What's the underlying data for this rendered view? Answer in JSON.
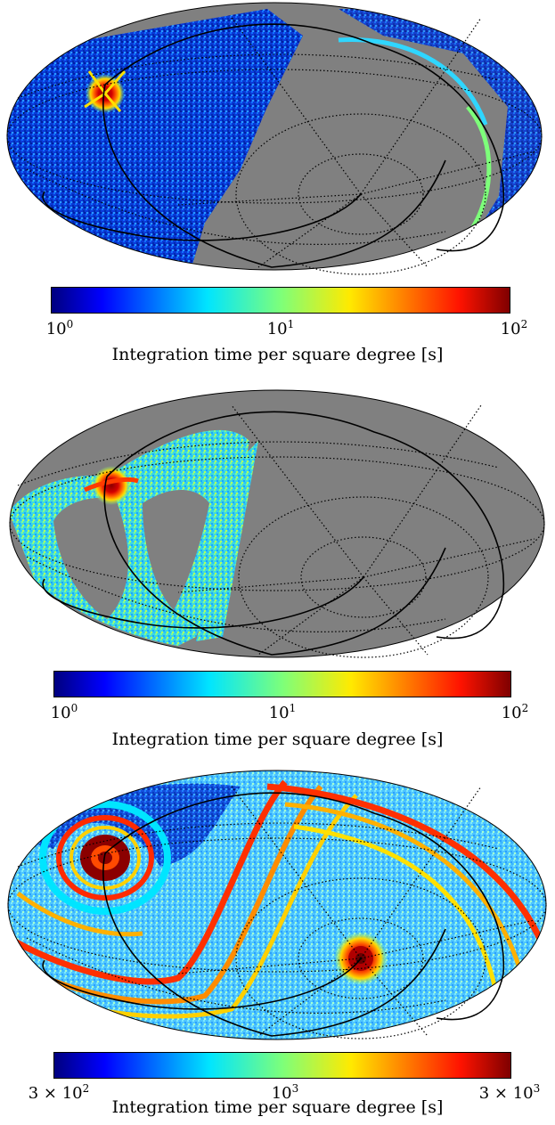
{
  "chart_data": [
    {
      "type": "heatmap",
      "projection": "mollweide",
      "colormap": "jet",
      "scale": "log",
      "colorbar_range": [
        1,
        100
      ],
      "colorbar_ticks": [
        {
          "base": "10",
          "exp": "0"
        },
        {
          "base": "10",
          "exp": "1"
        },
        {
          "base": "10",
          "exp": "2"
        }
      ],
      "colorbar_label": "Integration time per square degree [s]",
      "unobserved_color": "#808080"
    },
    {
      "type": "heatmap",
      "projection": "mollweide",
      "colormap": "jet",
      "scale": "log",
      "colorbar_range": [
        1,
        100
      ],
      "colorbar_ticks": [
        {
          "base": "10",
          "exp": "0"
        },
        {
          "base": "10",
          "exp": "1"
        },
        {
          "base": "10",
          "exp": "2"
        }
      ],
      "colorbar_label": "Integration time per square degree [s]",
      "unobserved_color": "#808080"
    },
    {
      "type": "heatmap",
      "projection": "mollweide",
      "colormap": "jet",
      "scale": "log",
      "colorbar_range": [
        300,
        3000
      ],
      "colorbar_ticks": [
        {
          "base": "3 × 10",
          "exp": "2"
        },
        {
          "base": "10",
          "exp": "3"
        },
        {
          "base": "3 × 10",
          "exp": "3"
        }
      ],
      "colorbar_label": "Integration time per square degree [s]"
    }
  ]
}
